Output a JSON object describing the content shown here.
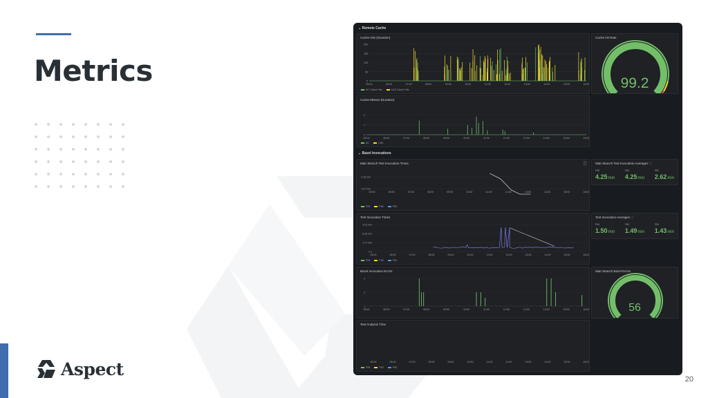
{
  "slide": {
    "title": "Metrics",
    "brand": "Aspect",
    "page_number": "20",
    "accent": "#3f6db0"
  },
  "dashboard": {
    "sections": {
      "remote_cache": "⌄ Remote Cache",
      "bazel": "⌄ Bazel Invocations"
    },
    "cache_hits": {
      "title": "Cache Hits (Duration)",
      "y_ticks": [
        "200",
        "150",
        "100",
        "50",
        "0"
      ],
      "x_ticks": [
        "05:00",
        "06:00",
        "07:00",
        "08:00",
        "09:00",
        "10:00",
        "11:00",
        "12:00",
        "13:00",
        "14:00",
        "15:00",
        "16:00"
      ],
      "legend": [
        "AC Cache Hits",
        "CAS Cache Hits"
      ]
    },
    "cache_hit_rate": {
      "title": "Cache Hit Rate",
      "value": "99.2",
      "fraction": 0.992
    },
    "cache_misses": {
      "title": "Cache Misses (Duration)",
      "y_ticks": [
        "2",
        "1",
        "0"
      ],
      "x_ticks": [
        "05:00",
        "06:00",
        "07:00",
        "08:00",
        "09:00",
        "10:00",
        "11:00",
        "12:00",
        "13:00",
        "14:00",
        "15:00",
        "16:00"
      ],
      "legend": [
        "AC",
        "CAS"
      ]
    },
    "main_branch_times": {
      "title": "Main Branch Test Invocation Times",
      "y_ticks": [
        "2.33 min",
        "1.67 min"
      ],
      "x_ticks": [
        "05:00",
        "06:00",
        "07:00",
        "08:00",
        "09:00",
        "10:00",
        "11:00",
        "12:00",
        "13:00",
        "14:00",
        "15:00",
        "16:00"
      ],
      "legend": [
        "P99",
        "P90",
        "P50"
      ],
      "menu": "⋮"
    },
    "main_branch_avgs": {
      "title": "Main Branch Test Invocation Averages",
      "info": "ⓘ",
      "stats": [
        {
          "label": "P99",
          "value": "4.25",
          "unit": "min"
        },
        {
          "label": "P90",
          "value": "4.25",
          "unit": "min"
        },
        {
          "label": "P50",
          "value": "2.62",
          "unit": "min"
        }
      ]
    },
    "test_times": {
      "title": "Test Invocation Times",
      "y_ticks": [
        "12.5 min",
        "8.33 min",
        "4.17 min",
        "0 s"
      ],
      "x_ticks": [
        "05:00",
        "06:00",
        "07:00",
        "08:00",
        "09:00",
        "10:00",
        "11:00",
        "12:00",
        "13:00",
        "14:00",
        "15:00",
        "16:00"
      ],
      "legend": [
        "P99",
        "P90",
        "P50"
      ]
    },
    "test_avgs": {
      "title": "Test Invocation Averages",
      "info": "ⓘ",
      "stats": [
        {
          "label": "P99",
          "value": "1.50",
          "unit": "min"
        },
        {
          "label": "P90",
          "value": "1.49",
          "unit": "min"
        },
        {
          "label": "P50",
          "value": "1.43",
          "unit": "min"
        }
      ]
    },
    "bazel_errors": {
      "title": "Bazel Invocation Errors",
      "y_ticks": [
        "4",
        "2",
        "1"
      ],
      "x_ticks": [
        "05:00",
        "06:00",
        "07:00",
        "08:00",
        "09:00",
        "10:00",
        "11:00",
        "12:00",
        "13:00",
        "14:00",
        "15:00",
        "16:00"
      ]
    },
    "main_errors": {
      "title": "Main Branch Bazel Errors",
      "value": "56",
      "fraction": 0.56
    },
    "analysis_time": {
      "title": "Test Analysis Time",
      "x_ticks": [
        "05:00",
        "06:00",
        "07:00",
        "08:00",
        "09:00",
        "10:00",
        "11:00",
        "12:00",
        "13:00",
        "14:00",
        "15:00",
        "16:00"
      ],
      "legend": [
        "P99",
        "P90",
        "P50"
      ]
    },
    "colors": {
      "green": "#73bf69",
      "yellow": "#fade2a",
      "blue": "#5794f2",
      "purple": "#8a8aff",
      "red": "#f2495c"
    }
  }
}
